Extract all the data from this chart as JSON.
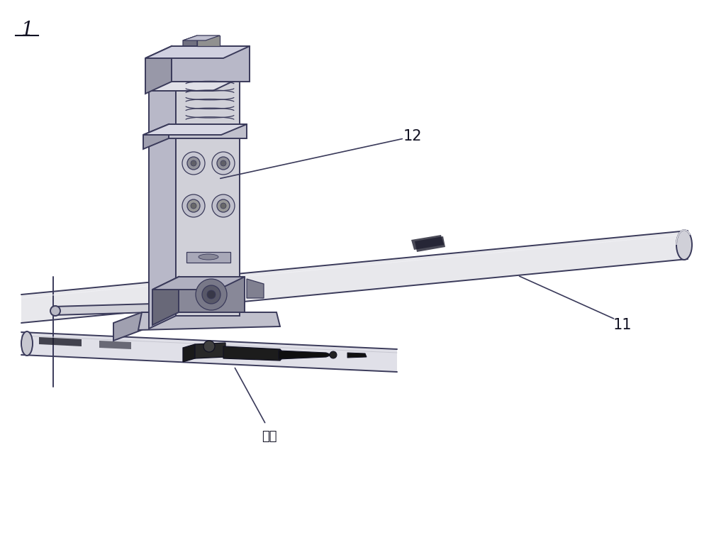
{
  "bg_color": "#ffffff",
  "line_color": "#3a3a5a",
  "dark_color": "#111122",
  "gray_light": "#d8d8e0",
  "gray_mid": "#b0b0c0",
  "gray_dark": "#808090",
  "black_part": "#1a1a1a",
  "label_1": "1",
  "label_11": "11",
  "label_12": "12",
  "label_product": "产品",
  "fig_width": 10.0,
  "fig_height": 7.82,
  "dpi": 100
}
